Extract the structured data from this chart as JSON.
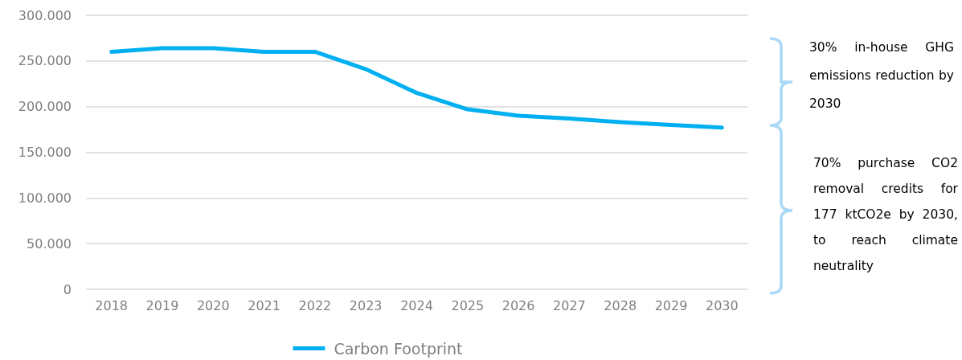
{
  "chart_data": {
    "type": "line",
    "categories": [
      "2018",
      "2019",
      "2020",
      "2021",
      "2022",
      "2023",
      "2024",
      "2025",
      "2026",
      "2027",
      "2028",
      "2029",
      "2030"
    ],
    "series": [
      {
        "name": "Carbon Footprint",
        "color": "#00b0f0",
        "values": [
          260000,
          264000,
          264000,
          260000,
          260000,
          241000,
          215000,
          197000,
          190000,
          187000,
          183000,
          180000,
          177000
        ]
      }
    ],
    "ylim": [
      0,
      300000
    ],
    "yticks": [
      0,
      {
        "value": 50000,
        "label": "50.000"
      },
      {
        "value": 100000,
        "label": "100.000"
      },
      {
        "value": 150000,
        "label": "150.000"
      },
      {
        "value": 200000,
        "label": "200.000"
      },
      {
        "value": 250000,
        "label": "250.000"
      },
      {
        "value": 300000,
        "label": "300.000"
      }
    ],
    "grid": "y",
    "legend": "bottom",
    "marker": "none",
    "line_style": "solid",
    "annotations": [
      "30% in-house GHG emissions reduction by 2030",
      "70% purchase CO2 removal credits for 177 ktCO2e by 2030, to reach climate neutrality"
    ]
  }
}
